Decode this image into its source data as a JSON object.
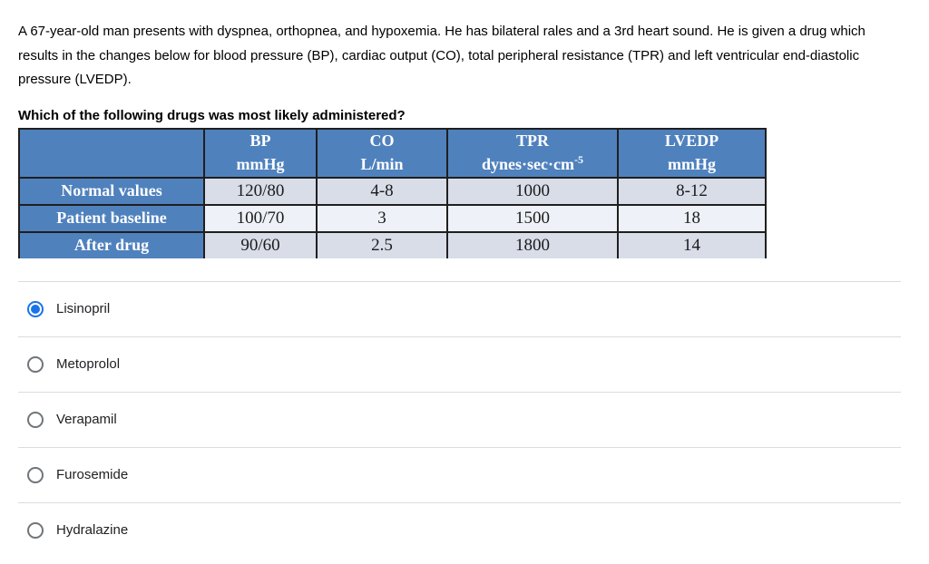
{
  "question": {
    "stem": "A 67-year-old man presents with dyspnea, orthopnea, and hypoxemia. He has bilateral rales and a 3rd heart sound. He is given a drug which results in the changes below for blood pressure (BP), cardiac output (CO), total peripheral resistance (TPR) and left ventricular end-diastolic pressure (LVEDP).",
    "prompt": "Which of the following drugs was most likely administered?"
  },
  "chart_data": {
    "type": "table",
    "columns": [
      {
        "line1": "BP",
        "line2": "mmHg",
        "sup": ""
      },
      {
        "line1": "CO",
        "line2": "L/min",
        "sup": ""
      },
      {
        "line1": "TPR",
        "line2": "dynes·sec·cm",
        "sup": "-5"
      },
      {
        "line1": "LVEDP",
        "line2": "mmHg",
        "sup": ""
      }
    ],
    "rows": [
      {
        "label": "Normal values",
        "values": [
          "120/80",
          "4-8",
          "1000",
          "8-12"
        ]
      },
      {
        "label": "Patient baseline",
        "values": [
          "100/70",
          "3",
          "1500",
          "18"
        ]
      },
      {
        "label": "After drug",
        "values": [
          "90/60",
          "2.5",
          "1800",
          "14"
        ]
      }
    ]
  },
  "options": [
    {
      "label": "Lisinopril",
      "selected": true
    },
    {
      "label": "Metoprolol",
      "selected": false
    },
    {
      "label": "Verapamil",
      "selected": false
    },
    {
      "label": "Furosemide",
      "selected": false
    },
    {
      "label": "Hydralazine",
      "selected": false
    }
  ],
  "theme": {
    "header_bg": "#4f81bd",
    "row_stripe_bg": "#d8dde8",
    "row_plain_bg": "#eef1f7",
    "table_border": "#1f1f1f",
    "radio_selected": "#1a73e8",
    "radio_unselected": "#70757a",
    "divider": "#dadce0",
    "text": "#111111"
  }
}
